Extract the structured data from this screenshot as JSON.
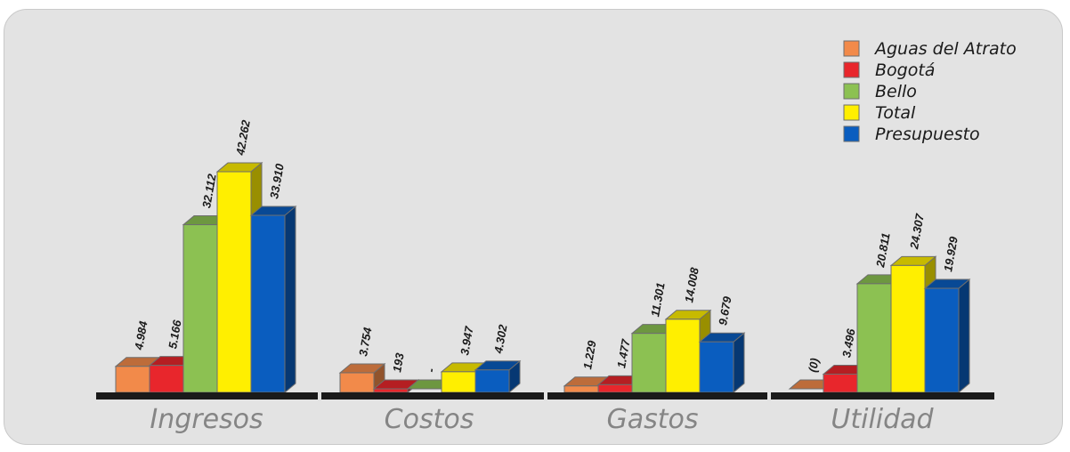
{
  "chart_data": {
    "type": "bar",
    "categories": [
      "Ingresos",
      "Costos",
      "Gastos",
      "Utilidad"
    ],
    "series": [
      {
        "name": "Aguas del Atrato",
        "color": "#f28a4a",
        "values": [
          4984,
          3754,
          1229,
          0
        ],
        "labels": [
          "4.984",
          "3.754",
          "1.229",
          "(0)"
        ]
      },
      {
        "name": "Bogotá",
        "color": "#e8262c",
        "values": [
          5166,
          193,
          1477,
          3496
        ],
        "labels": [
          "5.166",
          "193",
          "1.477",
          "3.496"
        ]
      },
      {
        "name": "Bello",
        "color": "#8cc152",
        "values": [
          32112,
          0,
          11301,
          20811
        ],
        "labels": [
          "32.112",
          "-",
          "11.301",
          "20.811"
        ]
      },
      {
        "name": "Total",
        "color": "#ffef00",
        "values": [
          42262,
          3947,
          14008,
          24307
        ],
        "labels": [
          "42.262",
          "3.947",
          "14.008",
          "24.307"
        ]
      },
      {
        "name": "Presupuesto",
        "color": "#0a5dbf",
        "values": [
          33910,
          4302,
          9679,
          19929
        ],
        "labels": [
          "33.910",
          "4.302",
          "9.679",
          "19.929"
        ]
      }
    ],
    "legend_position": "top-right",
    "grid": false
  }
}
